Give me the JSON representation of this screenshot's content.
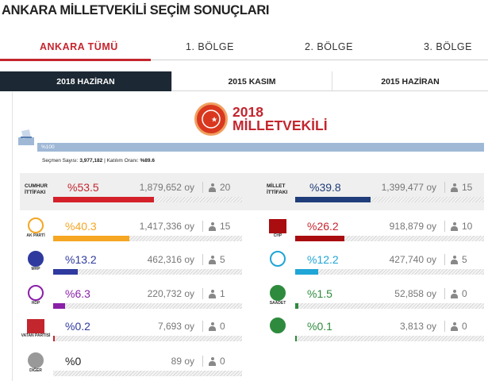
{
  "page_title": "ANKARA MİLLETVEKİLİ SEÇİM SONUÇLARI",
  "region_tabs": [
    "ANKARA TÜMÜ",
    "1. BÖLGE",
    "2. BÖLGE",
    "3. BÖLGE"
  ],
  "date_tabs": [
    "2018 HAZİRAN",
    "2015 KASIM",
    "2015 HAZİRAN"
  ],
  "election_title": {
    "line1": "2018",
    "line2": "MİLLETVEKİLİ"
  },
  "turnout": {
    "bar_label": "%100",
    "voters_label": "Seçmen Sayısı:",
    "voters_value": "3,977,182",
    "separator": "|",
    "rate_label": "Katılım Oranı:",
    "rate_value": "%89.6"
  },
  "colors": {
    "accent": "#c4262e",
    "dark_tab": "#1c2833",
    "turnout_bar": "#9fb8d6",
    "cumhur": "#d32029",
    "millet": "#1f3d7a",
    "akp": "#f5a623",
    "chp": "#a90d10",
    "mhp": "#2e3a9e",
    "iyi": "#1fa5d6",
    "hdp": "#8a1fa8",
    "saadet": "#2e8b3d"
  },
  "alliances": [
    {
      "name_line1": "CUMHUR",
      "name_line2": "İTTİFAKI",
      "pct": "%53.5",
      "pct_value": 53.5,
      "votes": "1,879,652 oy",
      "seats": "20",
      "color": "#d32029"
    },
    {
      "name_line1": "MİLLET",
      "name_line2": "İTTİFAKI",
      "pct": "%39.8",
      "pct_value": 39.8,
      "votes": "1,399,477 oy",
      "seats": "15",
      "color": "#1f3d7a"
    }
  ],
  "parties": [
    {
      "logo_icon": "akp-bulb-icon",
      "logo_text": "AK PARTİ",
      "pct": "%40.3",
      "pct_value": 40.3,
      "votes": "1,417,336 oy",
      "seats": "15",
      "color": "#f5a623",
      "pct_color": "#f5a623"
    },
    {
      "logo_icon": "chp-arrows-icon",
      "logo_text": "CHP",
      "pct": "%26.2",
      "pct_value": 26.2,
      "votes": "918,879 oy",
      "seats": "10",
      "color": "#a90d10",
      "pct_color": "#c4262e"
    },
    {
      "logo_icon": "mhp-crescents-icon",
      "logo_text": "MHP",
      "pct": "%13.2",
      "pct_value": 13.2,
      "votes": "462,316 oy",
      "seats": "5",
      "color": "#2e3a9e",
      "pct_color": "#2e3a9e"
    },
    {
      "logo_icon": "iyi-sun-icon",
      "logo_text": "",
      "pct": "%12.2",
      "pct_value": 12.2,
      "votes": "427,740 oy",
      "seats": "5",
      "color": "#1fa5d6",
      "pct_color": "#1fa5d6"
    },
    {
      "logo_icon": "hdp-tree-icon",
      "logo_text": "HDP",
      "pct": "%6.3",
      "pct_value": 6.3,
      "votes": "220,732 oy",
      "seats": "1",
      "color": "#8a1fa8",
      "pct_color": "#8a1fa8"
    },
    {
      "logo_icon": "saadet-logo-icon",
      "logo_text": "SAADET",
      "pct": "%1.5",
      "pct_value": 1.5,
      "votes": "52,858 oy",
      "seats": "0",
      "color": "#2e8b3d",
      "pct_color": "#2e8b3d"
    },
    {
      "logo_icon": "vatan-logo-icon",
      "logo_text": "VATAN PARTİSİ",
      "pct": "%0.2",
      "pct_value": 0.2,
      "votes": "7,693 oy",
      "seats": "0",
      "color": "#c4262e",
      "pct_color": "#2e3a9e"
    },
    {
      "logo_icon": "huda-par-logo-icon",
      "logo_text": "",
      "pct": "%0.1",
      "pct_value": 0.1,
      "votes": "3,813 oy",
      "seats": "0",
      "color": "#2e8b3d",
      "pct_color": "#2e8b3d"
    },
    {
      "logo_icon": "diger-circle-icon",
      "logo_text": "DİĞER",
      "pct": "%0",
      "pct_value": 0,
      "votes": "89 oy",
      "seats": "0",
      "color": "#999999",
      "pct_color": "#222222"
    }
  ]
}
